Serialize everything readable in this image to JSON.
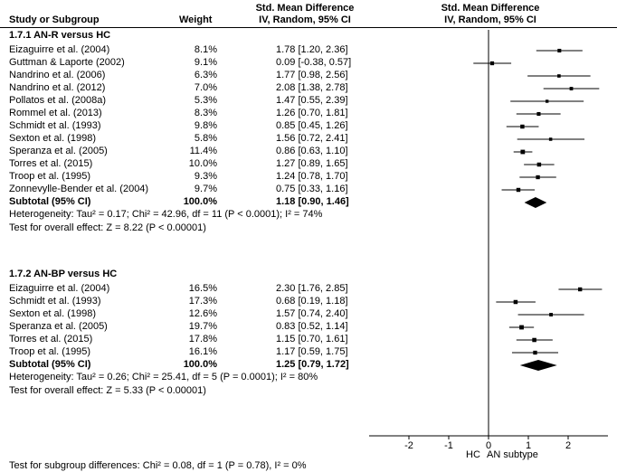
{
  "header": {
    "col_study": "Study or Subgroup",
    "col_weight": "Weight",
    "col_smd_line1": "Std. Mean Difference",
    "col_smd_line2": "IV, Random, 95% CI",
    "plot_line1": "Std. Mean Difference",
    "plot_line2": "IV, Random, 95% CI"
  },
  "chart_data": {
    "type": "forest",
    "xlim": [
      -3,
      3
    ],
    "x_ticks": [
      "-2",
      "-1",
      "0",
      "1",
      "2"
    ],
    "x_axis_left_label": "HC",
    "x_axis_right_label": "AN subtype",
    "groups": [
      {
        "title": "1.7.1 AN-R versus HC",
        "studies": [
          {
            "name": "Eizaguirre et al. (2004)",
            "weight": "8.1%",
            "ci_text": "1.78 [1.20, 2.36]",
            "est": 1.78,
            "lo": 1.2,
            "hi": 2.36
          },
          {
            "name": "Guttman & Laporte (2002)",
            "weight": "9.1%",
            "ci_text": "0.09 [-0.38, 0.57]",
            "est": 0.09,
            "lo": -0.38,
            "hi": 0.57
          },
          {
            "name": "Nandrino et al. (2006)",
            "weight": "6.3%",
            "ci_text": "1.77 [0.98, 2.56]",
            "est": 1.77,
            "lo": 0.98,
            "hi": 2.56
          },
          {
            "name": "Nandrino et al. (2012)",
            "weight": "7.0%",
            "ci_text": "2.08 [1.38, 2.78]",
            "est": 2.08,
            "lo": 1.38,
            "hi": 2.78
          },
          {
            "name": "Pollatos et al. (2008a)",
            "weight": "5.3%",
            "ci_text": "1.47 [0.55, 2.39]",
            "est": 1.47,
            "lo": 0.55,
            "hi": 2.39
          },
          {
            "name": "Rommel et al. (2013)",
            "weight": "8.3%",
            "ci_text": "1.26 [0.70, 1.81]",
            "est": 1.26,
            "lo": 0.7,
            "hi": 1.81
          },
          {
            "name": "Schmidt et al. (1993)",
            "weight": "9.8%",
            "ci_text": "0.85 [0.45, 1.26]",
            "est": 0.85,
            "lo": 0.45,
            "hi": 1.26
          },
          {
            "name": "Sexton et al. (1998)",
            "weight": "5.8%",
            "ci_text": "1.56 [0.72, 2.41]",
            "est": 1.56,
            "lo": 0.72,
            "hi": 2.41
          },
          {
            "name": "Speranza et al. (2005)",
            "weight": "11.4%",
            "ci_text": "0.86 [0.63, 1.10]",
            "est": 0.86,
            "lo": 0.63,
            "hi": 1.1
          },
          {
            "name": "Torres et al. (2015)",
            "weight": "10.0%",
            "ci_text": "1.27 [0.89, 1.65]",
            "est": 1.27,
            "lo": 0.89,
            "hi": 1.65
          },
          {
            "name": "Troop et al. (1995)",
            "weight": "9.3%",
            "ci_text": "1.24 [0.78, 1.70]",
            "est": 1.24,
            "lo": 0.78,
            "hi": 1.7
          },
          {
            "name": "Zonnevylle-Bender et al. (2004)",
            "weight": "9.7%",
            "ci_text": "0.75 [0.33, 1.16]",
            "est": 0.75,
            "lo": 0.33,
            "hi": 1.16
          }
        ],
        "subtotal": {
          "label": "Subtotal (95% CI)",
          "weight": "100.0%",
          "ci_text": "1.18 [0.90, 1.46]",
          "est": 1.18,
          "lo": 0.9,
          "hi": 1.46
        },
        "heterogeneity": "Heterogeneity: Tau² = 0.17; Chi² = 42.96, df = 11 (P < 0.0001); I² = 74%",
        "overall_effect": "Test for overall effect: Z = 8.22 (P < 0.00001)"
      },
      {
        "title": "1.7.2 AN-BP versus HC",
        "studies": [
          {
            "name": "Eizaguirre et al. (2004)",
            "weight": "16.5%",
            "ci_text": "2.30 [1.76, 2.85]",
            "est": 2.3,
            "lo": 1.76,
            "hi": 2.85
          },
          {
            "name": "Schmidt et al. (1993)",
            "weight": "17.3%",
            "ci_text": "0.68 [0.19, 1.18]",
            "est": 0.68,
            "lo": 0.19,
            "hi": 1.18
          },
          {
            "name": "Sexton et al. (1998)",
            "weight": "12.6%",
            "ci_text": "1.57 [0.74, 2.40]",
            "est": 1.57,
            "lo": 0.74,
            "hi": 2.4
          },
          {
            "name": "Speranza et al. (2005)",
            "weight": "19.7%",
            "ci_text": "0.83 [0.52, 1.14]",
            "est": 0.83,
            "lo": 0.52,
            "hi": 1.14
          },
          {
            "name": "Torres et al. (2015)",
            "weight": "17.8%",
            "ci_text": "1.15 [0.70, 1.61]",
            "est": 1.15,
            "lo": 0.7,
            "hi": 1.61
          },
          {
            "name": "Troop et al. (1995)",
            "weight": "16.1%",
            "ci_text": "1.17 [0.59, 1.75]",
            "est": 1.17,
            "lo": 0.59,
            "hi": 1.75
          }
        ],
        "subtotal": {
          "label": "Subtotal (95% CI)",
          "weight": "100.0%",
          "ci_text": "1.25 [0.79, 1.72]",
          "est": 1.25,
          "lo": 0.79,
          "hi": 1.72
        },
        "heterogeneity": "Heterogeneity: Tau² = 0.26; Chi² = 25.41, df = 5 (P = 0.0001); I² = 80%",
        "overall_effect": "Test for overall effect: Z = 5.33 (P < 0.00001)"
      }
    ],
    "subgroup_test": "Test for subgroup differences: Chi² = 0.08, df = 1 (P = 0.78), I² = 0%"
  }
}
